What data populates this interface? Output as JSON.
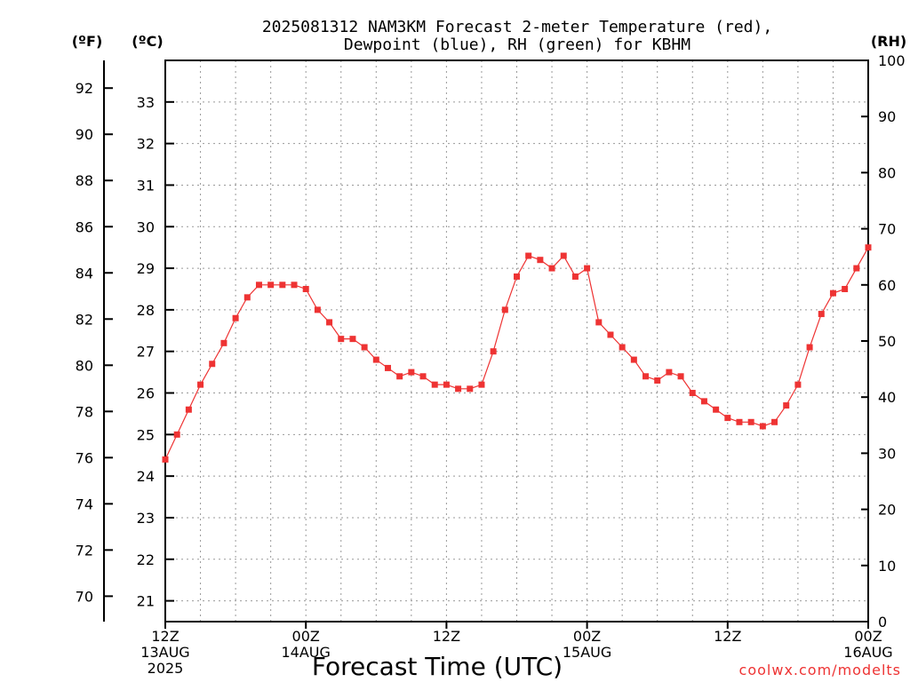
{
  "chart_data": {
    "type": "line",
    "title_line1": "2025081312 NAM3KM Forecast 2-meter Temperature (red),",
    "title_line2": "Dewpoint (blue), RH (green) for KBHM",
    "xlabel": "Forecast Time (UTC)",
    "credit": "coolwx.com/modelts",
    "unit_left_f": "(ºF)",
    "unit_left_c": "(ºC)",
    "unit_right": "(RH)",
    "x_ticks": [
      {
        "hour": 0,
        "l1": "12Z",
        "l2": "13AUG",
        "l3": "2025"
      },
      {
        "hour": 12,
        "l1": "00Z",
        "l2": "14AUG",
        "l3": ""
      },
      {
        "hour": 24,
        "l1": "12Z",
        "l2": "",
        "l3": ""
      },
      {
        "hour": 36,
        "l1": "00Z",
        "l2": "15AUG",
        "l3": ""
      },
      {
        "hour": 48,
        "l1": "12Z",
        "l2": "",
        "l3": ""
      },
      {
        "hour": 60,
        "l1": "00Z",
        "l2": "16AUG",
        "l3": ""
      }
    ],
    "xlim": [
      0,
      60
    ],
    "ylim_c": [
      20.5,
      34
    ],
    "ylim_rh": [
      0,
      100
    ],
    "c_ticks": [
      "21",
      "22",
      "23",
      "24",
      "25",
      "26",
      "27",
      "28",
      "29",
      "30",
      "31",
      "32",
      "33"
    ],
    "f_ticks": [
      "70",
      "72",
      "74",
      "76",
      "78",
      "80",
      "82",
      "84",
      "86",
      "88",
      "90",
      "92"
    ],
    "rh_ticks": [
      "0",
      "10",
      "20",
      "30",
      "40",
      "50",
      "60",
      "70",
      "80",
      "90",
      "100"
    ],
    "grid": true,
    "colors": {
      "temperature": "#ee3333",
      "dewpoint": "#2233dd",
      "rh": "#11cc11"
    },
    "series": [
      {
        "key": "temperature",
        "axis": "celsius",
        "marker": "filled-square",
        "values": [
          24.4,
          25.0,
          25.6,
          26.2,
          26.7,
          27.2,
          27.8,
          28.3,
          28.6,
          28.6,
          28.6,
          28.6,
          28.5,
          28.0,
          27.7,
          27.3,
          27.3,
          27.1,
          26.8,
          26.6,
          26.4,
          26.5,
          26.4,
          26.2,
          26.2,
          26.1,
          26.1,
          26.2,
          27.0,
          28.0,
          28.8,
          29.3,
          29.2,
          29.0,
          29.3,
          28.8,
          29.0,
          27.7,
          27.4,
          27.1,
          26.8,
          26.4,
          26.3,
          26.5,
          26.4,
          26.0,
          25.8,
          25.6,
          25.4,
          25.3,
          25.3,
          25.2,
          25.3,
          25.7,
          26.2,
          27.1,
          27.9,
          28.4,
          28.5,
          29.0,
          29.5
        ],
        "comment": "values shown on chart per forecast hour"
      }
    ]
  }
}
